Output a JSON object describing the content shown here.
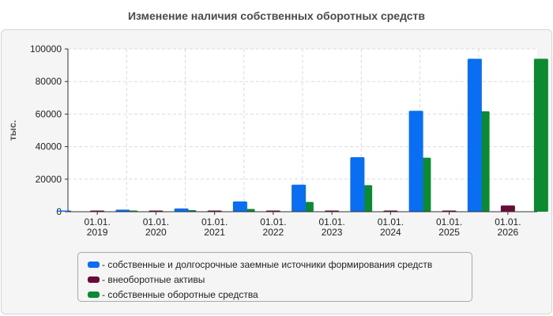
{
  "chart_data": {
    "type": "bar",
    "title": "Изменение наличия собственных оборотных средств",
    "xlabel": "",
    "ylabel": "тыс.",
    "ylim": [
      0,
      100000
    ],
    "yticks": [
      0,
      20000,
      40000,
      60000,
      80000,
      100000
    ],
    "grid": true,
    "legend_position": "bottom",
    "categories": [
      [
        "01.01.",
        "2019"
      ],
      [
        "01.01.",
        "2020"
      ],
      [
        "01.01.",
        "2021"
      ],
      [
        "01.01.",
        "2022"
      ],
      [
        "01.01.",
        "2023"
      ],
      [
        "01.01.",
        "2024"
      ],
      [
        "01.01.",
        "2025"
      ],
      [
        "01.01.",
        "2026"
      ]
    ],
    "series": [
      {
        "name": "- собственные и долгосрочные заемные источники формирования средств",
        "color": "#0a6ef2",
        "values": [
          600,
          1300,
          2000,
          6300,
          16600,
          33500,
          62000,
          94000
        ]
      },
      {
        "name": "- внеоборотные активы",
        "color": "#6b0a36",
        "values": [
          300,
          300,
          300,
          300,
          300,
          300,
          300,
          3800
        ]
      },
      {
        "name": "- собственные оборотные средства",
        "color": "#0c8a32",
        "values": [
          300,
          1000,
          1700,
          6000,
          16300,
          33200,
          61700,
          94000
        ]
      }
    ]
  }
}
